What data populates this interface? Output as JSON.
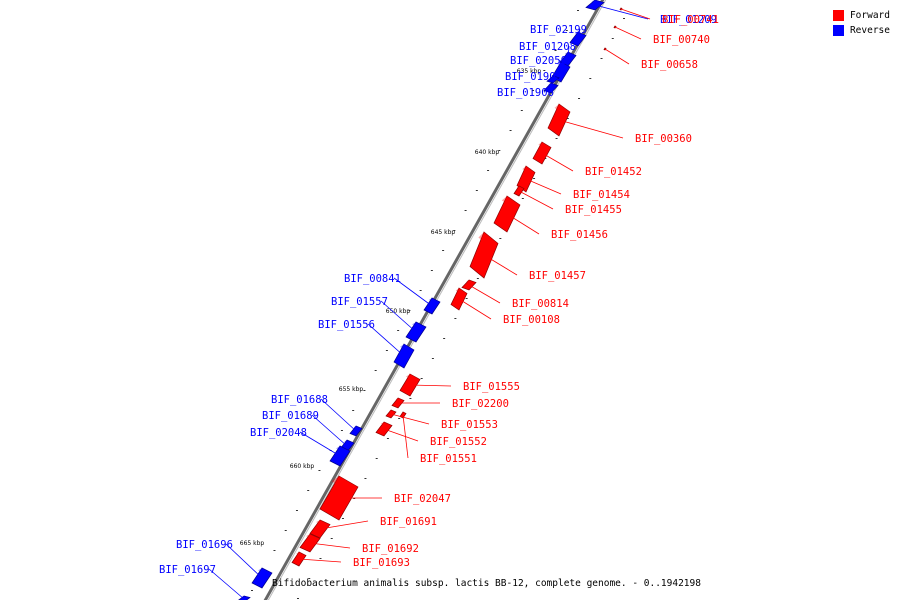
{
  "title": "Bifidobacterium animalis subsp. lactis BB-12, complete genome. - 0..1942198",
  "legend": [
    {
      "label": "Forward",
      "color": "#ff0000"
    },
    {
      "label": "Reverse",
      "color": "#0000ff"
    }
  ],
  "colors": {
    "forward": "#ff0000",
    "reverse": "#0000ff",
    "backbone": "#999999"
  },
  "ticks": [
    "635 kbp",
    "640 kbp",
    "645 kbp",
    "650 kbp",
    "655 kbp",
    "660 kbp",
    "665 kbp"
  ],
  "genes": [
    {
      "label": "BIF_01209",
      "strand": "reverse"
    },
    {
      "label": "BIF_02199",
      "strand": "reverse"
    },
    {
      "label": "BIF_01208",
      "strand": "reverse"
    },
    {
      "label": "BIF_02050",
      "strand": "reverse"
    },
    {
      "label": "BIF_01905",
      "strand": "reverse"
    },
    {
      "label": "BIF_01906",
      "strand": "reverse"
    },
    {
      "label": "BIF_00741",
      "strand": "forward"
    },
    {
      "label": "BIF_00740",
      "strand": "forward"
    },
    {
      "label": "BIF_00658",
      "strand": "forward"
    },
    {
      "label": "BIF_00360",
      "strand": "forward"
    },
    {
      "label": "BIF_01452",
      "strand": "forward"
    },
    {
      "label": "BIF_01454",
      "strand": "forward"
    },
    {
      "label": "BIF_01455",
      "strand": "forward"
    },
    {
      "label": "BIF_01456",
      "strand": "forward"
    },
    {
      "label": "BIF_01457",
      "strand": "forward"
    },
    {
      "label": "BIF_00814",
      "strand": "forward"
    },
    {
      "label": "BIF_00108",
      "strand": "forward"
    },
    {
      "label": "BIF_00841",
      "strand": "reverse"
    },
    {
      "label": "BIF_01557",
      "strand": "reverse"
    },
    {
      "label": "BIF_01556",
      "strand": "reverse"
    },
    {
      "label": "BIF_01555",
      "strand": "forward"
    },
    {
      "label": "BIF_02200",
      "strand": "forward"
    },
    {
      "label": "BIF_01553",
      "strand": "forward"
    },
    {
      "label": "BIF_01552",
      "strand": "forward"
    },
    {
      "label": "BIF_01551",
      "strand": "forward"
    },
    {
      "label": "BIF_01688",
      "strand": "reverse"
    },
    {
      "label": "BIF_01689",
      "strand": "reverse"
    },
    {
      "label": "BIF_02048",
      "strand": "reverse"
    },
    {
      "label": "BIF_02047",
      "strand": "forward"
    },
    {
      "label": "BIF_01691",
      "strand": "forward"
    },
    {
      "label": "BIF_01692",
      "strand": "forward"
    },
    {
      "label": "BIF_01693",
      "strand": "forward"
    },
    {
      "label": "BIF_01696",
      "strand": "reverse"
    },
    {
      "label": "BIF_01697",
      "strand": "reverse"
    }
  ]
}
